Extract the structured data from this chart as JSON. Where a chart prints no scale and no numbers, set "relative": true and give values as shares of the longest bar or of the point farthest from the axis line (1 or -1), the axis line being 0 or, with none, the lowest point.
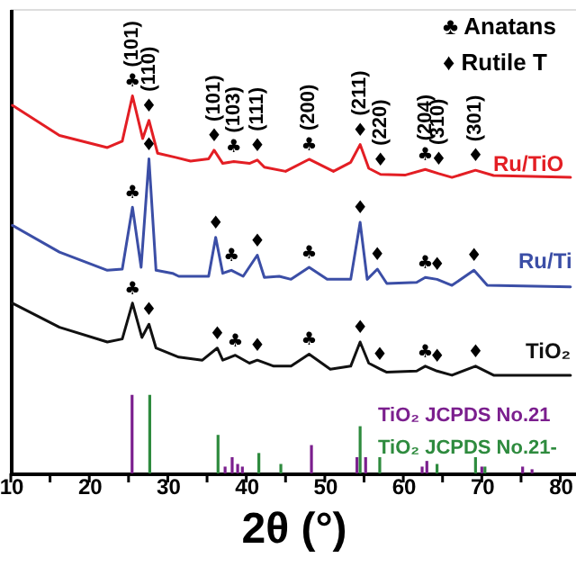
{
  "chart_data": {
    "type": "line",
    "relative": true,
    "xlabel": "2θ (°)",
    "xlim": [
      10,
      82
    ],
    "xticks": [
      10,
      {
        "value": 15,
        "label": null
      },
      20,
      {
        "value": 25,
        "label": null
      },
      30,
      {
        "value": 35,
        "label": null
      },
      40,
      {
        "value": 45,
        "label": null
      },
      50,
      {
        "value": 55,
        "label": null
      },
      60,
      {
        "value": 65,
        "label": null
      },
      70,
      {
        "value": 75,
        "label": null
      },
      80
    ],
    "tick_labels": "x",
    "grid": false,
    "legend": "bottom right",
    "series": [
      {
        "name": "Ru/TiO",
        "color": "#e31e24",
        "x": [
          10.2,
          16.2,
          22.3,
          24.2,
          25.5,
          26.8,
          27.6,
          28.7,
          31.0,
          32.9,
          35.2,
          35.9,
          37.0,
          38.4,
          40.4,
          41.4,
          42.3,
          45.0,
          48.0,
          51.1,
          53.3,
          54.5,
          55.6,
          57.1,
          60.2,
          62.8,
          64.5,
          66.2,
          69.2,
          71.5,
          81.3
        ],
        "values": [
          0.975,
          0.895,
          0.863,
          0.88,
          1.0,
          0.887,
          0.935,
          0.848,
          0.837,
          0.827,
          0.833,
          0.856,
          0.821,
          0.826,
          0.821,
          0.83,
          0.811,
          0.8,
          0.832,
          0.8,
          0.824,
          0.871,
          0.808,
          0.792,
          0.79,
          0.805,
          0.794,
          0.784,
          0.803,
          0.789,
          0.784
        ]
      },
      {
        "name": "Ru/Ti",
        "color": "#3b4ea6",
        "x": [
          10.2,
          16.2,
          22.3,
          24.2,
          25.5,
          26.6,
          27.6,
          28.5,
          30.6,
          31.4,
          35.2,
          36.1,
          37.0,
          38.1,
          39.6,
          41.4,
          42.3,
          44.2,
          45.7,
          48.0,
          50.3,
          53.3,
          54.5,
          55.4,
          56.7,
          57.9,
          61.7,
          62.8,
          64.3,
          66.2,
          69.0,
          70.7,
          81.3
        ],
        "values": [
          0.657,
          0.586,
          0.538,
          0.541,
          0.705,
          0.546,
          0.833,
          0.538,
          0.53,
          0.522,
          0.522,
          0.625,
          0.53,
          0.538,
          0.522,
          0.578,
          0.519,
          0.522,
          0.514,
          0.546,
          0.514,
          0.514,
          0.665,
          0.514,
          0.541,
          0.503,
          0.506,
          0.519,
          0.514,
          0.498,
          0.538,
          0.498,
          0.494
        ]
      },
      {
        "name": "TiO₂",
        "color": "#111111",
        "x": [
          10.2,
          16.2,
          22.3,
          24.2,
          25.5,
          26.7,
          27.6,
          28.5,
          31.4,
          34.4,
          36.3,
          37.0,
          38.6,
          40.4,
          41.4,
          43.5,
          45.7,
          48.0,
          50.7,
          53.3,
          54.5,
          55.6,
          57.0,
          57.9,
          61.7,
          62.8,
          64.3,
          66.2,
          69.2,
          71.5,
          81.3
        ],
        "values": [
          0.451,
          0.387,
          0.348,
          0.356,
          0.451,
          0.36,
          0.395,
          0.332,
          0.308,
          0.3,
          0.332,
          0.3,
          0.313,
          0.292,
          0.3,
          0.284,
          0.284,
          0.316,
          0.276,
          0.284,
          0.348,
          0.292,
          0.277,
          0.268,
          0.271,
          0.284,
          0.271,
          0.26,
          0.284,
          0.26,
          0.26
        ]
      },
      {
        "name": "TiO₂ JCPDS No.21",
        "type": "bar",
        "color": "#7b1f8e",
        "x": [
          25.45,
          37.3,
          38.2,
          38.9,
          39.5,
          48.3,
          54.1,
          55.2,
          62.4,
          63.0,
          70.0,
          75.2,
          76.4
        ],
        "values": [
          0.208,
          0.018,
          0.043,
          0.025,
          0.018,
          0.075,
          0.043,
          0.043,
          0.018,
          0.033,
          0.018,
          0.018,
          0.011
        ]
      },
      {
        "name": "TiO₂ JCPDS No.21-",
        "type": "bar",
        "color": "#2e8b3e",
        "x": [
          27.7,
          36.4,
          41.6,
          44.4,
          54.5,
          57.0,
          64.3,
          69.2,
          70.4
        ],
        "values": [
          0.208,
          0.102,
          0.054,
          0.025,
          0.125,
          0.043,
          0.025,
          0.043,
          0.018
        ]
      }
    ],
    "annotations": [
      "♣ Anatans",
      "♦ Rutile T",
      {
        "text": "♣",
        "x": 25.5,
        "y": 1.0
      },
      {
        "text": "(101)",
        "x": 25.5,
        "y": 1.0
      },
      {
        "text": "♦",
        "x": 27.6,
        "y": 0.935
      },
      {
        "text": "(110)",
        "x": 27.6,
        "y": 0.935
      },
      {
        "text": "♦",
        "x": 35.9,
        "y": 0.856
      },
      {
        "text": "(101)",
        "x": 35.9,
        "y": 0.856
      },
      {
        "text": "♣",
        "x": 38.4,
        "y": 0.826
      },
      {
        "text": "(103)",
        "x": 38.4,
        "y": 0.826
      },
      {
        "text": "♦",
        "x": 41.4,
        "y": 0.83
      },
      {
        "text": "(111)",
        "x": 41.4,
        "y": 0.83
      },
      {
        "text": "♣",
        "x": 48.0,
        "y": 0.832
      },
      {
        "text": "(200)",
        "x": 48.0,
        "y": 0.832
      },
      {
        "text": "♦",
        "x": 54.5,
        "y": 0.871
      },
      {
        "text": "(211)",
        "x": 54.5,
        "y": 0.871
      },
      {
        "text": "♦",
        "x": 57.1,
        "y": 0.792
      },
      {
        "text": "(220)",
        "x": 57.1,
        "y": 0.792
      },
      {
        "text": "♣",
        "x": 62.8,
        "y": 0.805
      },
      {
        "text": "(204)",
        "x": 62.8,
        "y": 0.805
      },
      {
        "text": "♦",
        "x": 64.5,
        "y": 0.794
      },
      {
        "text": "(310)",
        "x": 64.5,
        "y": 0.794
      },
      {
        "text": "♦",
        "x": 69.2,
        "y": 0.803
      },
      {
        "text": "(301)",
        "x": 69.2,
        "y": 0.803
      },
      {
        "text": "♣",
        "x": 25.5,
        "y": 0.705
      },
      {
        "text": "♦",
        "x": 27.6,
        "y": 0.833
      },
      {
        "text": "♦",
        "x": 36.1,
        "y": 0.625
      },
      {
        "text": "♣",
        "x": 38.1,
        "y": 0.538
      },
      {
        "text": "♦",
        "x": 41.4,
        "y": 0.578
      },
      {
        "text": "♣",
        "x": 48.0,
        "y": 0.546
      },
      {
        "text": "♦",
        "x": 54.5,
        "y": 0.665
      },
      {
        "text": "♦",
        "x": 56.7,
        "y": 0.541
      },
      {
        "text": "♣",
        "x": 62.8,
        "y": 0.519
      },
      {
        "text": "♦",
        "x": 64.3,
        "y": 0.514
      },
      {
        "text": "♦",
        "x": 69.0,
        "y": 0.538
      },
      {
        "text": "♣",
        "x": 25.5,
        "y": 0.451
      },
      {
        "text": "♦",
        "x": 27.6,
        "y": 0.395
      },
      {
        "text": "♦",
        "x": 36.3,
        "y": 0.332
      },
      {
        "text": "♣",
        "x": 38.6,
        "y": 0.313
      },
      {
        "text": "♦",
        "x": 41.4,
        "y": 0.3
      },
      {
        "text": "♣",
        "x": 48.0,
        "y": 0.316
      },
      {
        "text": "♦",
        "x": 54.5,
        "y": 0.348
      },
      {
        "text": "♦",
        "x": 57.0,
        "y": 0.277
      },
      {
        "text": "♣",
        "x": 62.8,
        "y": 0.284
      },
      {
        "text": "♦",
        "x": 64.3,
        "y": 0.271
      },
      {
        "text": "♦",
        "x": 69.2,
        "y": 0.284
      }
    ]
  }
}
